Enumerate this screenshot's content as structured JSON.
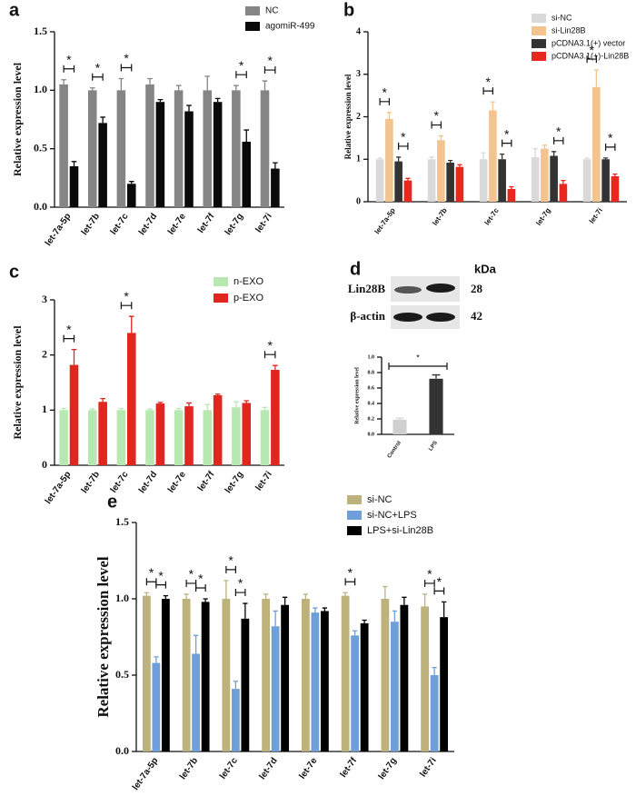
{
  "chart_data": [
    {
      "type": "bar",
      "label": "a",
      "y_label": "Relative expression level",
      "categories": [
        "let-7a-5p",
        "let-7b",
        "let-7c",
        "let-7d",
        "let-7e",
        "let-7f",
        "let-7g",
        "let-7i"
      ],
      "series": [
        {
          "name": "NC",
          "color": "#858585",
          "values": [
            1.05,
            1.0,
            1.0,
            1.05,
            1.0,
            1.0,
            1.0,
            1.0
          ],
          "errors": [
            0.04,
            0.02,
            0.1,
            0.05,
            0.04,
            0.12,
            0.04,
            0.08
          ]
        },
        {
          "name": "agomiR-499",
          "color": "#0a0a0a",
          "values": [
            0.35,
            0.72,
            0.2,
            0.9,
            0.82,
            0.9,
            0.56,
            0.33
          ],
          "errors": [
            0.04,
            0.05,
            0.02,
            0.02,
            0.05,
            0.03,
            0.1,
            0.05
          ]
        }
      ],
      "ylim": [
        0,
        1.5
      ],
      "yticks": [
        {
          "value": 0,
          "label": "0.0"
        },
        0.5,
        {
          "value": 1,
          "label": "1.0"
        },
        1.5
      ],
      "annotations": [
        "*",
        "*",
        "*",
        "*",
        "*"
      ]
    },
    {
      "type": "bar",
      "label": "b",
      "y_label": "Relative expression level",
      "categories": [
        "let-7a-5p",
        "let-7b",
        "let-7c",
        "let-7g",
        "let-7i"
      ],
      "series": [
        {
          "name": "si-NC",
          "color": "#d9d9d9",
          "values": [
            1.0,
            1.0,
            1.0,
            1.05,
            1.0
          ],
          "errors": [
            0.03,
            0.05,
            0.15,
            0.2,
            0.03
          ]
        },
        {
          "name": "si-Lin28B",
          "color": "#f3c48f",
          "values": [
            1.95,
            1.45,
            2.15,
            1.25,
            2.7
          ],
          "errors": [
            0.15,
            0.1,
            0.2,
            0.08,
            0.4
          ]
        },
        {
          "name": "pCDNA3.1(+) vector",
          "color": "#333333",
          "values": [
            0.95,
            0.92,
            1.0,
            1.08,
            1.0
          ],
          "errors": [
            0.1,
            0.05,
            0.12,
            0.1,
            0.03
          ]
        },
        {
          "name": "pCDNA3.1(+)-Lin28B",
          "color": "#e8281e",
          "values": [
            0.5,
            0.82,
            0.3,
            0.42,
            0.6
          ],
          "errors": [
            0.05,
            0.05,
            0.05,
            0.08,
            0.05
          ]
        }
      ],
      "ylim": [
        0,
        4
      ],
      "yticks": [
        0,
        1,
        2,
        3,
        4
      ],
      "annotations": [
        "*",
        "*",
        "*",
        "*",
        "*",
        "*",
        "*",
        "*"
      ]
    },
    {
      "type": "bar",
      "label": "c",
      "y_label": "Relative expression level",
      "categories": [
        "let-7a-5p",
        "let-7b",
        "let-7c",
        "let-7d",
        "let-7e",
        "let-7f",
        "let-7g",
        "let-7i"
      ],
      "series": [
        {
          "name": "n-EXO",
          "color": "#b7e8b2",
          "values": [
            1.0,
            1.0,
            1.0,
            1.0,
            1.0,
            1.0,
            1.05,
            1.0
          ],
          "errors": [
            0.03,
            0.02,
            0.03,
            0.02,
            0.03,
            0.1,
            0.1,
            0.05
          ]
        },
        {
          "name": "p-EXO",
          "color": "#e0261f",
          "values": [
            1.82,
            1.15,
            2.4,
            1.12,
            1.07,
            1.27,
            1.13,
            1.73
          ],
          "errors": [
            0.28,
            0.06,
            0.3,
            0.02,
            0.06,
            0.02,
            0.04,
            0.08
          ]
        }
      ],
      "ylim": [
        0,
        3
      ],
      "yticks": [
        0,
        1,
        2,
        3
      ],
      "annotations": [
        "*",
        "*",
        "*"
      ]
    },
    {
      "type": "bar",
      "label": "d",
      "y_label": "Relative expression level",
      "blot": {
        "unit": "kDa",
        "bands": [
          {
            "name": "Lin28B",
            "size": 28
          },
          {
            "name": "β-actin",
            "size": 42
          }
        ]
      },
      "categories": [
        "Control",
        "LPS"
      ],
      "series": [
        {
          "colors": [
            "#d0d0d0",
            "#333333"
          ],
          "values": [
            0.19,
            0.72
          ],
          "errors": [
            0.02,
            0.05
          ]
        }
      ],
      "ylim": [
        0,
        1
      ],
      "yticks": [
        {
          "value": 0,
          "label": "0.0"
        },
        0.2,
        0.4,
        0.6,
        0.8,
        {
          "value": 1,
          "label": "1.0"
        }
      ],
      "annotations": [
        "*"
      ]
    },
    {
      "type": "bar",
      "label": "e",
      "y_label": "Relative expression level",
      "categories": [
        "let-7a-5p",
        "let-7b",
        "let-7c",
        "let-7d",
        "let-7e",
        "let-7f",
        "let-7g",
        "let-7i"
      ],
      "series": [
        {
          "name": "si-NC",
          "color": "#bdb27c",
          "values": [
            1.02,
            1.0,
            1.0,
            1.0,
            1.0,
            1.02,
            1.0,
            0.95
          ],
          "errors": [
            0.02,
            0.03,
            0.12,
            0.03,
            0.03,
            0.02,
            0.08,
            0.08
          ]
        },
        {
          "name": "si-NC+LPS",
          "color": "#6f9fd8",
          "values": [
            0.58,
            0.64,
            0.41,
            0.82,
            0.91,
            0.76,
            0.85,
            0.5
          ],
          "errors": [
            0.04,
            0.12,
            0.05,
            0.1,
            0.03,
            0.03,
            0.07,
            0.05
          ]
        },
        {
          "name": "LPS+si-Lin28B",
          "color": "#000000",
          "values": [
            1.0,
            0.98,
            0.87,
            0.96,
            0.92,
            0.84,
            0.96,
            0.88
          ],
          "errors": [
            0.02,
            0.02,
            0.1,
            0.05,
            0.02,
            0.02,
            0.05,
            0.1
          ]
        }
      ],
      "ylim": [
        0,
        1.5
      ],
      "yticks": [
        {
          "value": 0,
          "label": "0.0"
        },
        0.5,
        {
          "value": 1,
          "label": "1.0"
        },
        1.5
      ],
      "annotations": [
        "*",
        "*",
        "*",
        "*",
        "*",
        "*",
        "*",
        "*",
        "*"
      ]
    }
  ]
}
